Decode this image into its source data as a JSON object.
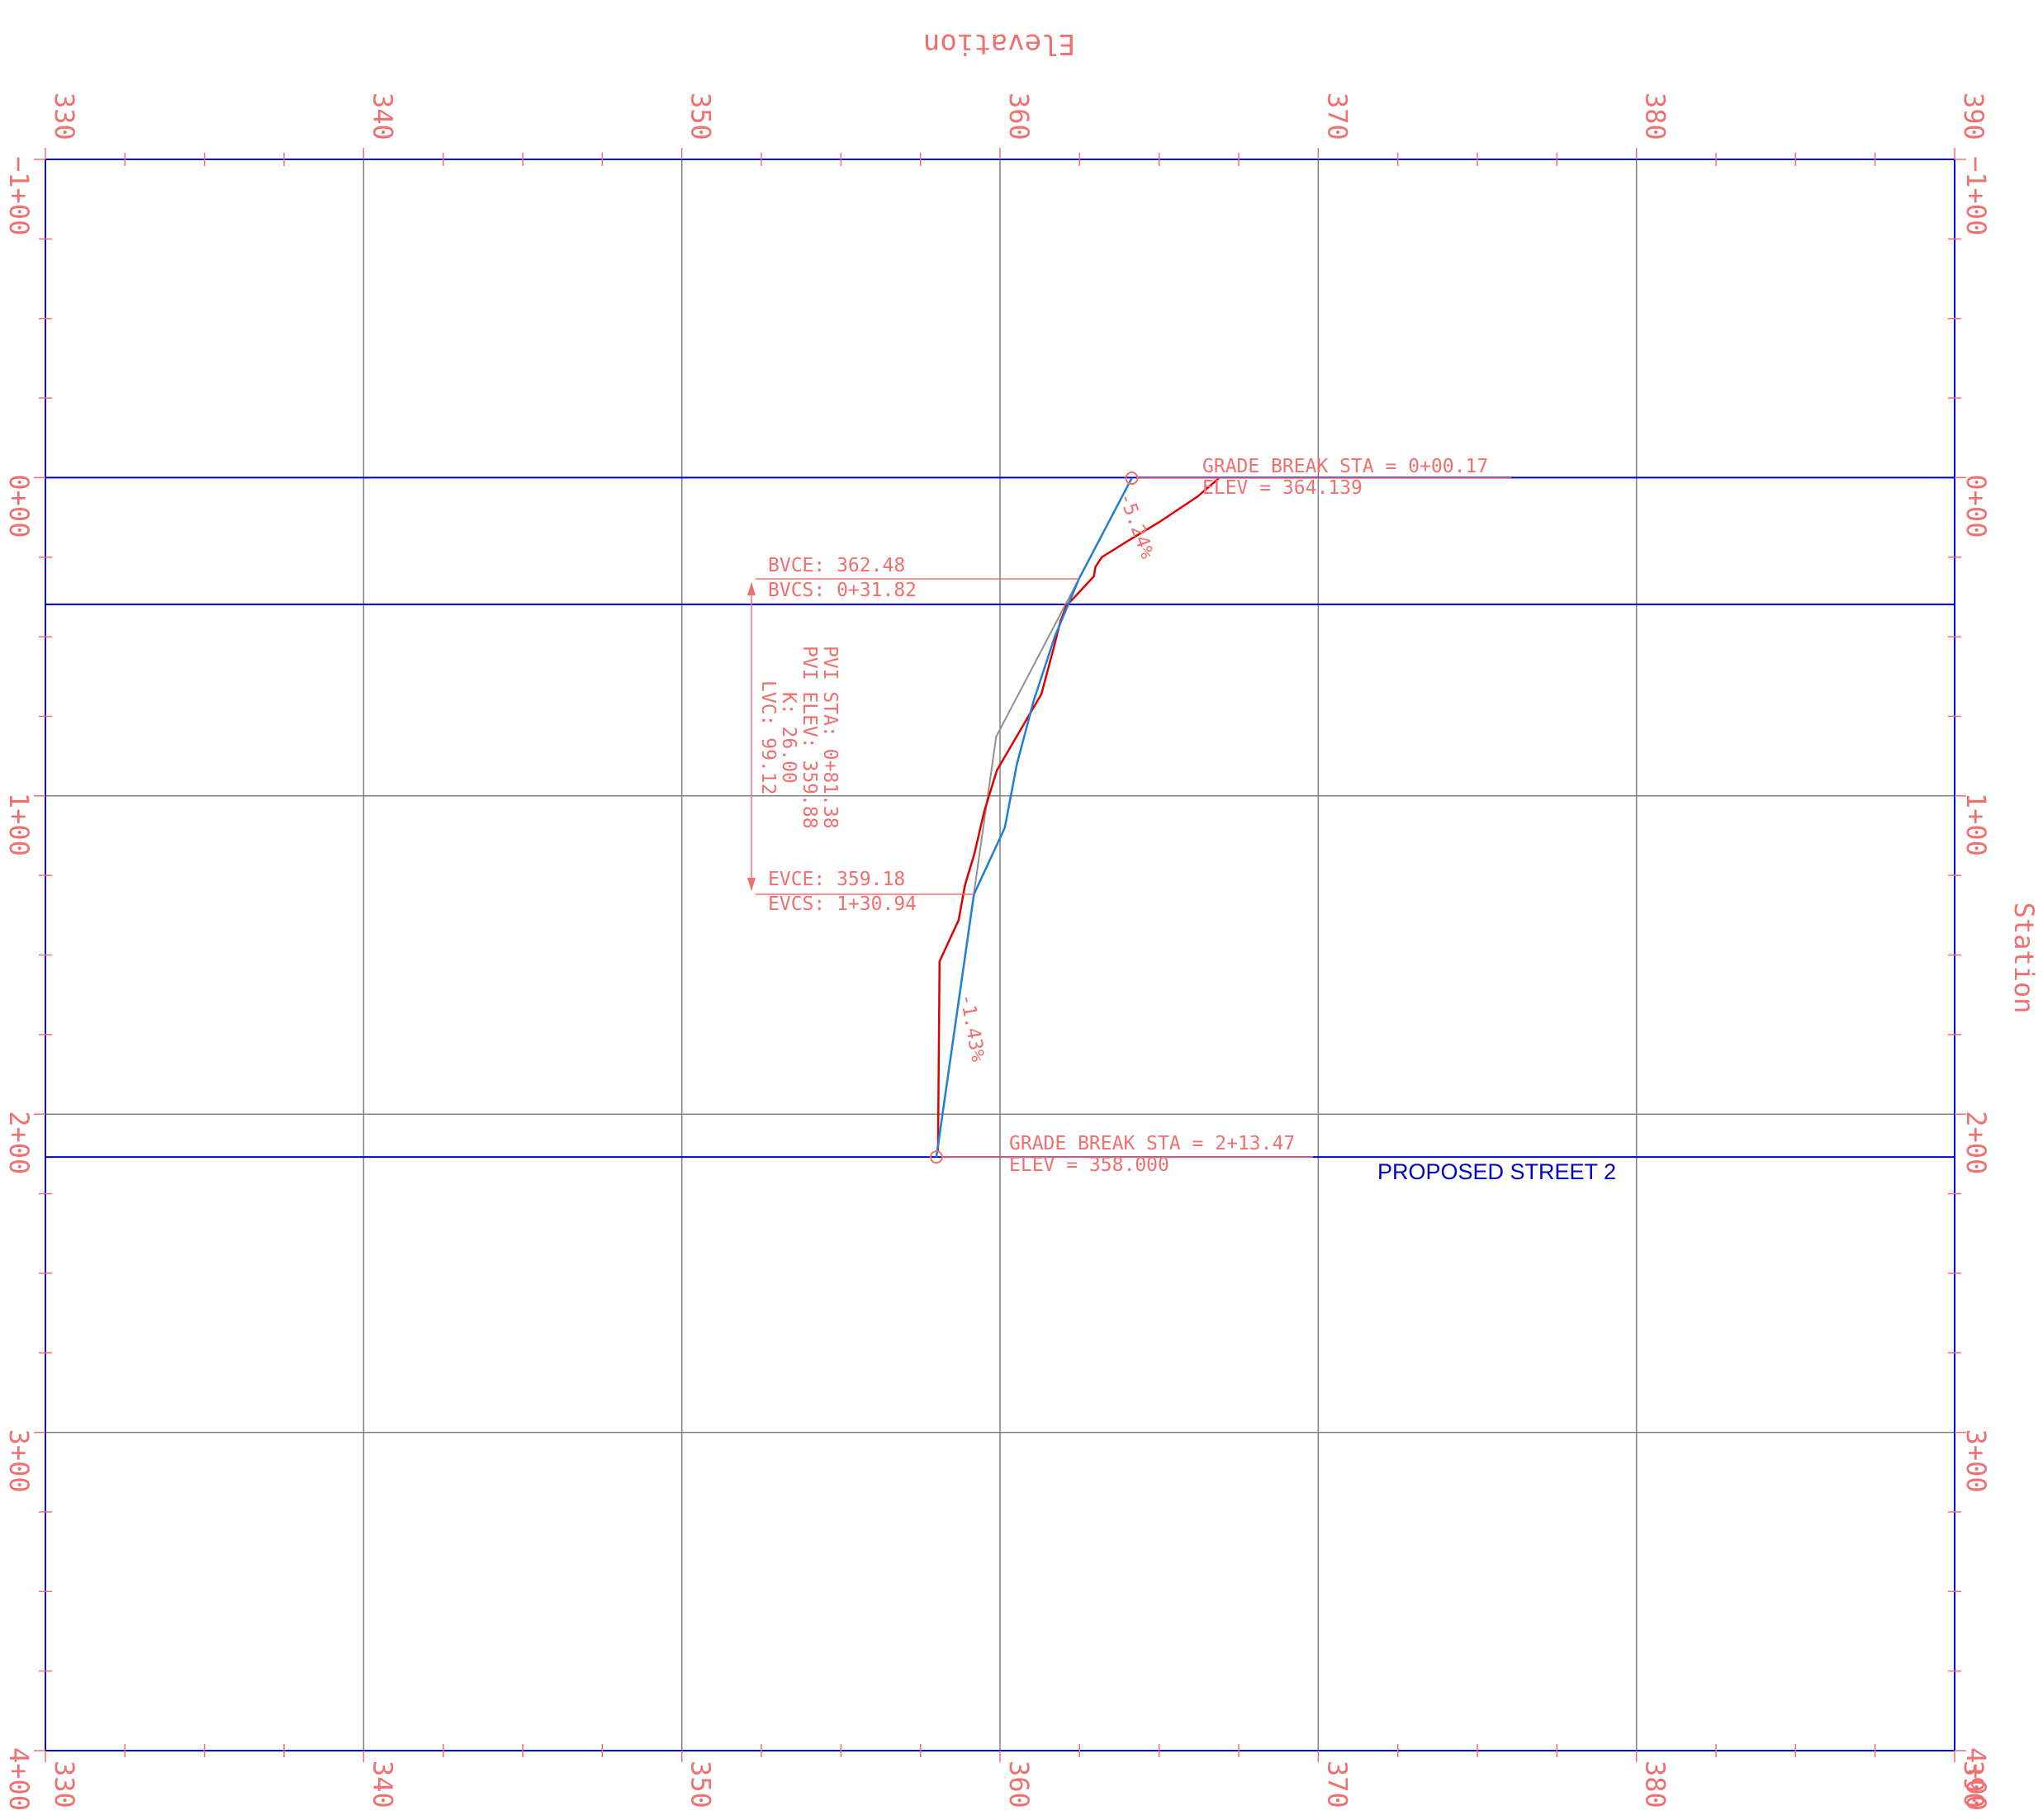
{
  "colors": {
    "annotation": "#f07070",
    "frame": "#0000cc",
    "grid": "#808080",
    "existing_ground": "#e00000",
    "proposed_grade": "#1f7fd8",
    "tangent": "#909090"
  },
  "axes": {
    "elevation_title": "Elevation",
    "station_title": "Station",
    "elevation_range": [
      330,
      390
    ],
    "station_range": [
      -100,
      400
    ],
    "elevation_ticks": [
      {
        "value": 330,
        "label": "330"
      },
      {
        "value": 340,
        "label": "340"
      },
      {
        "value": 350,
        "label": "350"
      },
      {
        "value": 360,
        "label": "360"
      },
      {
        "value": 370,
        "label": "370"
      },
      {
        "value": 380,
        "label": "380"
      },
      {
        "value": 390,
        "label": "390"
      }
    ],
    "station_ticks": [
      {
        "value": -100,
        "label": "−1+00"
      },
      {
        "value": 0,
        "label": "0+00"
      },
      {
        "value": 100,
        "label": "1+00"
      },
      {
        "value": 200,
        "label": "2+00"
      },
      {
        "value": 300,
        "label": "3+00"
      },
      {
        "value": 400,
        "label": "4+00"
      }
    ]
  },
  "profile": {
    "name": "PROPOSED STREET 2",
    "grade_break_top": {
      "station": 0.17,
      "elevation": 364.139,
      "label_sta": "GRADE BREAK STA = 0+00.17",
      "label_elev": "ELEV =   364.139"
    },
    "grade_break_bottom": {
      "station": 213.47,
      "elevation": 358.0,
      "label_sta": "GRADE BREAK STA = 2+13.47",
      "label_elev": "ELEV =   358.000"
    },
    "grade_in": "-5.24%",
    "grade_out": "-1.43%",
    "bvc": {
      "station": 31.82,
      "elevation": 362.48,
      "label_elev": "BVCE:  362.48",
      "label_sta": "BVCS:  0+31.82"
    },
    "evc": {
      "station": 130.94,
      "elevation": 359.18,
      "label_elev": "EVCE:  359.18",
      "label_sta": "EVCS:  1+30.94"
    },
    "pvi": {
      "station": 81.38,
      "elevation": 359.88
    },
    "pvi_block": [
      "PVI STA:  0+81.38",
      "PVI ELEV:  359.88",
      "K:  26.00",
      "LVC:  99.12"
    ],
    "existing_ground": [
      {
        "station": 0,
        "elevation": 366.9
      },
      {
        "station": 6,
        "elevation": 366.2
      },
      {
        "station": 14,
        "elevation": 365.0
      },
      {
        "station": 20,
        "elevation": 364.0
      },
      {
        "station": 25,
        "elevation": 363.2
      },
      {
        "station": 28,
        "elevation": 363.0
      },
      {
        "station": 31,
        "elevation": 362.95
      },
      {
        "station": 38,
        "elevation": 362.3
      },
      {
        "station": 40,
        "elevation": 362.1
      },
      {
        "station": 45,
        "elevation": 361.9
      },
      {
        "station": 53,
        "elevation": 361.7
      },
      {
        "station": 68,
        "elevation": 361.3
      },
      {
        "station": 80,
        "elevation": 360.6
      },
      {
        "station": 92,
        "elevation": 359.9
      },
      {
        "station": 105,
        "elevation": 359.5
      },
      {
        "station": 118,
        "elevation": 359.2
      },
      {
        "station": 128,
        "elevation": 358.9
      },
      {
        "station": 139,
        "elevation": 358.7
      },
      {
        "station": 152,
        "elevation": 358.1
      },
      {
        "station": 212,
        "elevation": 358.05
      }
    ],
    "vertical_curve": [
      {
        "station": 0.17,
        "elevation": 364.139
      },
      {
        "station": 31.82,
        "elevation": 362.48
      },
      {
        "station": 50,
        "elevation": 361.72
      },
      {
        "station": 70,
        "elevation": 361.06
      },
      {
        "station": 90,
        "elevation": 360.53
      },
      {
        "station": 110,
        "elevation": 360.15
      },
      {
        "station": 130.94,
        "elevation": 359.18
      },
      {
        "station": 213.47,
        "elevation": 358.0
      }
    ]
  }
}
